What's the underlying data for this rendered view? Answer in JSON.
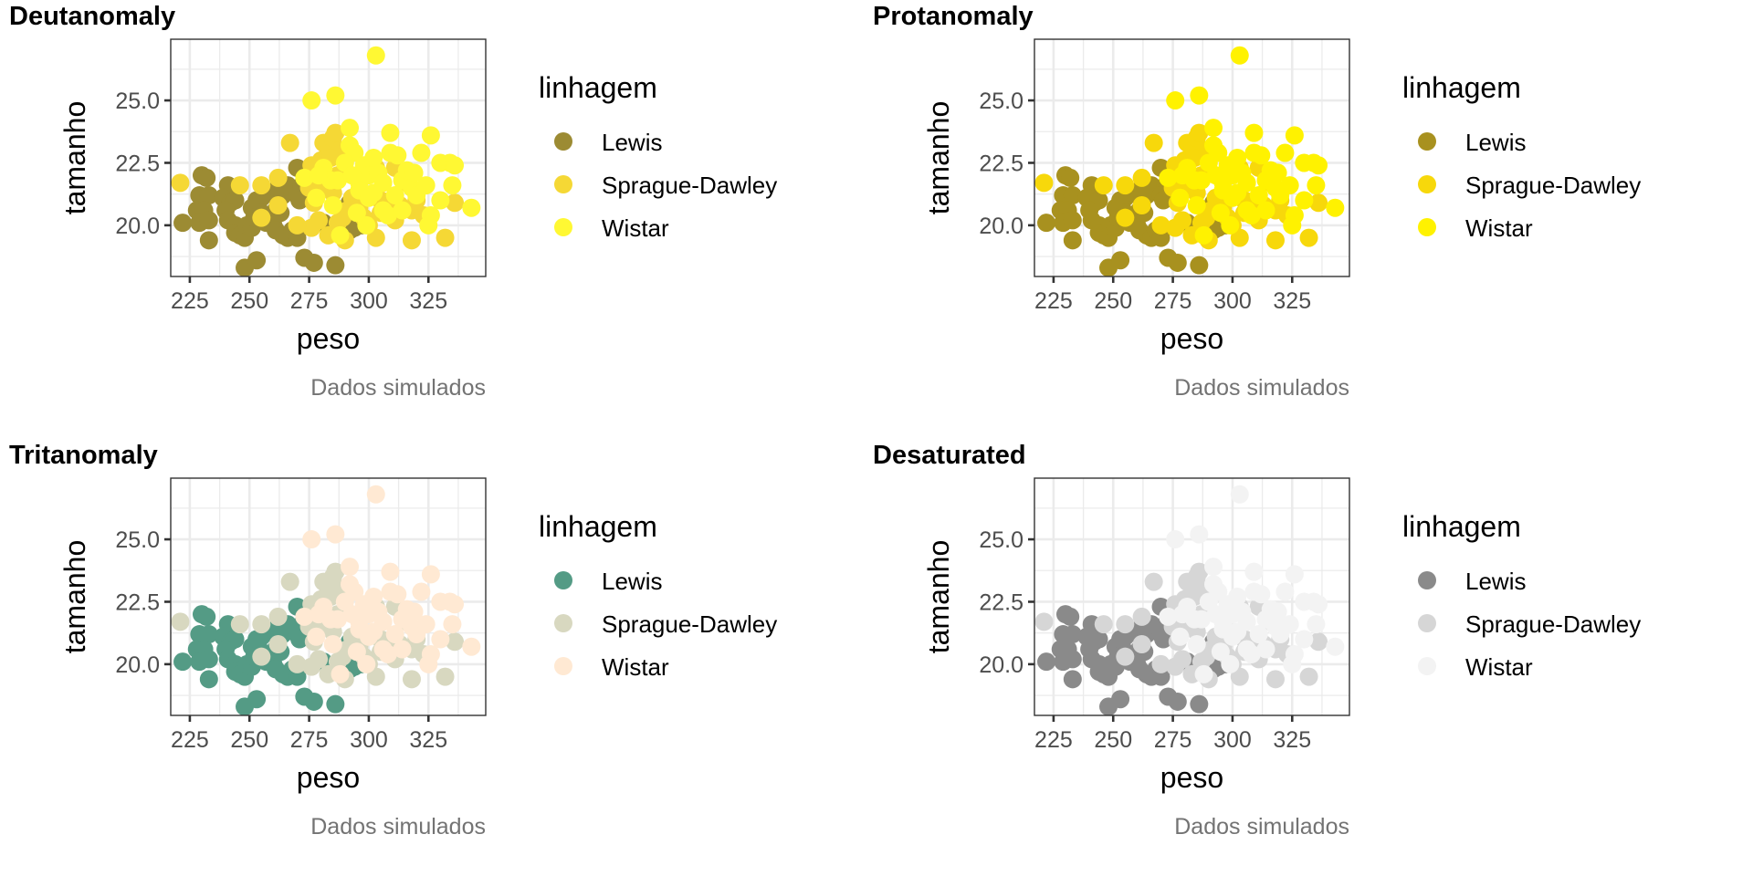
{
  "figure": {
    "caption": "Dados simulados"
  },
  "chart_data": [
    {
      "type": "scatter",
      "title": "Deutanomaly",
      "xlabel": "peso",
      "ylabel": "tamanho",
      "caption": "Dados simulados",
      "xlim": [
        217,
        349
      ],
      "ylim": [
        17.95,
        27.45
      ],
      "xticks": [
        225,
        250,
        275,
        300,
        325
      ],
      "xtick_labels": [
        "225",
        "250",
        "275",
        "300",
        "325"
      ],
      "yticks": [
        20.0,
        22.5,
        25.0
      ],
      "ytick_labels": [
        "20.0",
        "22.5",
        "25.0"
      ],
      "grid": true,
      "legend": "right",
      "legend_title": "linhagem",
      "colors": {
        "Lewis": "#9c8b33",
        "Sprague-Dawley": "#f5d835",
        "Wistar": "#fff833"
      }
    },
    {
      "type": "scatter",
      "title": "Protanomaly",
      "xlabel": "peso",
      "ylabel": "tamanho",
      "caption": "Dados simulados",
      "xlim": [
        217,
        349
      ],
      "ylim": [
        17.95,
        27.45
      ],
      "xticks": [
        225,
        250,
        275,
        300,
        325
      ],
      "xtick_labels": [
        "225",
        "250",
        "275",
        "300",
        "325"
      ],
      "yticks": [
        20.0,
        22.5,
        25.0
      ],
      "ytick_labels": [
        "20.0",
        "22.5",
        "25.0"
      ],
      "grid": true,
      "legend": "right",
      "legend_title": "linhagem",
      "colors": {
        "Lewis": "#a8911f",
        "Sprague-Dawley": "#f7d80b",
        "Wistar": "#fff200"
      }
    },
    {
      "type": "scatter",
      "title": "Tritanomaly",
      "xlabel": "peso",
      "ylabel": "tamanho",
      "caption": "Dados simulados",
      "xlim": [
        217,
        349
      ],
      "ylim": [
        17.95,
        27.45
      ],
      "xticks": [
        225,
        250,
        275,
        300,
        325
      ],
      "xtick_labels": [
        "225",
        "250",
        "275",
        "300",
        "325"
      ],
      "yticks": [
        20.0,
        22.5,
        25.0
      ],
      "ytick_labels": [
        "20.0",
        "22.5",
        "25.0"
      ],
      "grid": true,
      "legend": "right",
      "legend_title": "linhagem",
      "colors": {
        "Lewis": "#549b85",
        "Sprague-Dawley": "#d8d8c0",
        "Wistar": "#ffe9d3"
      }
    },
    {
      "type": "scatter",
      "title": "Desaturated",
      "xlabel": "peso",
      "ylabel": "tamanho",
      "caption": "Dados simulados",
      "xlim": [
        217,
        349
      ],
      "ylim": [
        17.95,
        27.45
      ],
      "xticks": [
        225,
        250,
        275,
        300,
        325
      ],
      "xtick_labels": [
        "225",
        "250",
        "275",
        "300",
        "325"
      ],
      "yticks": [
        20.0,
        22.5,
        25.0
      ],
      "ytick_labels": [
        "20.0",
        "22.5",
        "25.0"
      ],
      "grid": true,
      "legend": "right",
      "legend_title": "linhagem",
      "colors": {
        "Lewis": "#8a8a8a",
        "Sprague-Dawley": "#d6d6d6",
        "Wistar": "#f3f3f3"
      }
    }
  ],
  "series": [
    {
      "name": "Lewis",
      "points": [
        [
          222,
          20.1
        ],
        [
          230,
          22.0
        ],
        [
          232,
          21.9
        ],
        [
          229,
          21.2
        ],
        [
          233,
          21.2
        ],
        [
          228,
          20.6
        ],
        [
          231,
          20.6
        ],
        [
          229,
          20.1
        ],
        [
          233,
          20.2
        ],
        [
          233,
          19.4
        ],
        [
          241,
          21.6
        ],
        [
          239,
          21.1
        ],
        [
          242,
          20.9
        ],
        [
          244,
          21.0
        ],
        [
          240,
          20.6
        ],
        [
          241,
          20.2
        ],
        [
          244,
          20.0
        ],
        [
          244,
          19.7
        ],
        [
          246,
          19.6
        ],
        [
          248,
          19.5
        ],
        [
          249,
          20.0
        ],
        [
          251,
          19.9
        ],
        [
          252,
          20.3
        ],
        [
          251,
          20.7
        ],
        [
          253,
          21.0
        ],
        [
          255,
          21.1
        ],
        [
          256,
          21.2
        ],
        [
          258,
          21.3
        ],
        [
          255,
          20.5
        ],
        [
          257,
          20.1
        ],
        [
          260,
          20.0
        ],
        [
          261,
          20.6
        ],
        [
          262,
          21.0
        ],
        [
          263,
          20.5
        ],
        [
          261,
          19.8
        ],
        [
          264,
          19.6
        ],
        [
          266,
          19.5
        ],
        [
          268,
          19.8
        ],
        [
          262,
          21.5
        ],
        [
          264,
          21.2
        ],
        [
          266,
          21.6
        ],
        [
          270,
          22.3
        ],
        [
          272,
          21.6
        ],
        [
          270,
          21.2
        ],
        [
          271,
          21.0
        ],
        [
          248,
          18.3
        ],
        [
          253,
          18.6
        ],
        [
          273,
          18.7
        ],
        [
          277,
          18.5
        ],
        [
          286,
          18.4
        ],
        [
          281,
          20.1
        ],
        [
          292,
          20.9
        ],
        [
          294,
          19.9
        ],
        [
          297,
          20.0
        ],
        [
          292,
          19.8
        ],
        [
          270,
          19.5
        ]
      ]
    },
    {
      "name": "Sprague-Dawley",
      "points": [
        [
          221,
          21.7
        ],
        [
          246,
          21.6
        ],
        [
          255,
          21.6
        ],
        [
          262,
          21.9
        ],
        [
          267,
          23.3
        ],
        [
          276,
          22.4
        ],
        [
          275,
          21.5
        ],
        [
          277,
          20.9
        ],
        [
          279,
          21.4
        ],
        [
          280,
          22.6
        ],
        [
          281,
          23.3
        ],
        [
          283,
          23.0
        ],
        [
          284,
          22.9
        ],
        [
          285,
          23.5
        ],
        [
          286,
          23.7
        ],
        [
          287,
          22.0
        ],
        [
          288,
          23.0
        ],
        [
          284,
          22.7
        ],
        [
          279,
          20.2
        ],
        [
          276,
          19.9
        ],
        [
          287,
          20.1
        ],
        [
          289,
          20.3
        ],
        [
          291,
          20.6
        ],
        [
          293,
          21.1
        ],
        [
          296,
          21.0
        ],
        [
          298,
          20.3
        ],
        [
          300,
          20.0
        ],
        [
          303,
          19.5
        ],
        [
          305,
          20.5
        ],
        [
          305,
          21.0
        ],
        [
          308,
          20.8
        ],
        [
          311,
          22.3
        ],
        [
          311,
          20.2
        ],
        [
          313,
          20.8
        ],
        [
          316,
          21.7
        ],
        [
          318,
          20.6
        ],
        [
          318,
          19.4
        ],
        [
          323,
          20.4
        ],
        [
          320,
          21.0
        ],
        [
          332,
          19.5
        ],
        [
          336,
          20.9
        ],
        [
          300,
          22.4
        ],
        [
          290,
          19.4
        ],
        [
          283,
          19.6
        ],
        [
          270,
          20.0
        ],
        [
          255,
          20.3
        ],
        [
          262,
          20.8
        ],
        [
          285,
          21.3
        ],
        [
          303,
          22.3
        ],
        [
          296,
          20.7
        ]
      ]
    },
    {
      "name": "Wistar",
      "points": [
        [
          276,
          25.0
        ],
        [
          286,
          25.2
        ],
        [
          303,
          26.8
        ],
        [
          292,
          23.9
        ],
        [
          309,
          23.7
        ],
        [
          326,
          23.6
        ],
        [
          281,
          22.3
        ],
        [
          284,
          21.8
        ],
        [
          292,
          23.2
        ],
        [
          294,
          22.9
        ],
        [
          296,
          21.7
        ],
        [
          298,
          22.4
        ],
        [
          300,
          22.0
        ],
        [
          302,
          21.3
        ],
        [
          304,
          22.1
        ],
        [
          306,
          21.7
        ],
        [
          309,
          22.9
        ],
        [
          312,
          22.8
        ],
        [
          314,
          21.8
        ],
        [
          316,
          22.2
        ],
        [
          318,
          21.5
        ],
        [
          320,
          21.2
        ],
        [
          322,
          22.9
        ],
        [
          326,
          20.4
        ],
        [
          330,
          22.5
        ],
        [
          334,
          22.5
        ],
        [
          335,
          21.6
        ],
        [
          343,
          20.7
        ],
        [
          325,
          20.0
        ],
        [
          299,
          20.0
        ],
        [
          288,
          19.6
        ],
        [
          278,
          21.1
        ],
        [
          273,
          21.9
        ],
        [
          290,
          22.5
        ],
        [
          296,
          21.4
        ],
        [
          306,
          20.6
        ],
        [
          311,
          21.2
        ],
        [
          319,
          22.1
        ],
        [
          330,
          21.0
        ],
        [
          302,
          22.7
        ],
        [
          279,
          22.0
        ],
        [
          287,
          21.8
        ],
        [
          295,
          20.5
        ],
        [
          308,
          20.4
        ],
        [
          314,
          20.6
        ],
        [
          285,
          20.8
        ],
        [
          293,
          22.0
        ],
        [
          300,
          21.1
        ],
        [
          324,
          21.6
        ],
        [
          336,
          22.4
        ]
      ]
    }
  ],
  "legend_items": [
    "Lewis",
    "Sprague-Dawley",
    "Wistar"
  ]
}
